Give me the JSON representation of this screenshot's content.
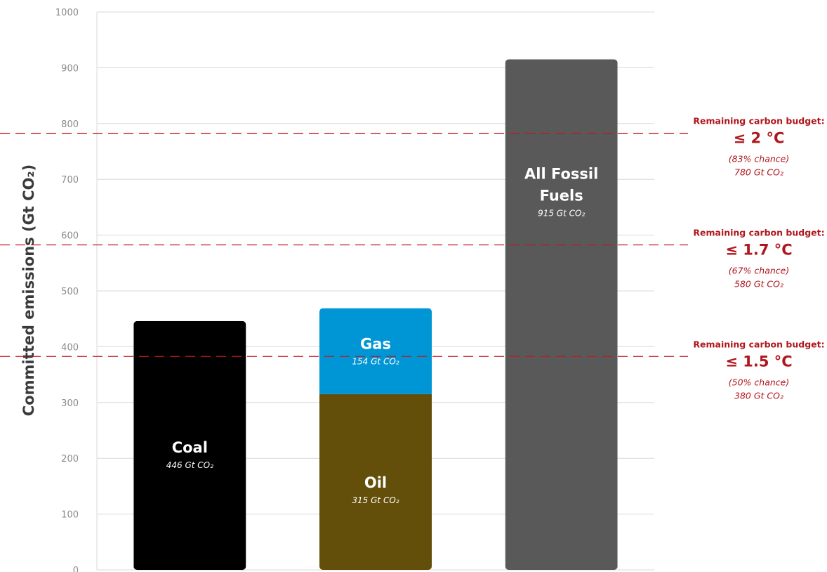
{
  "chart_data": {
    "type": "bar",
    "ylabel": "Committed emissions (Gt CO₂)",
    "ylim": [
      0,
      1000
    ],
    "yticks": [
      "0",
      "100",
      "200",
      "300",
      "400",
      "500",
      "600",
      "700",
      "800",
      "900",
      "1000"
    ],
    "grid": true,
    "bars": [
      {
        "segments": [
          {
            "name": "Coal",
            "value": 446,
            "value_label": "446 Gt CO₂",
            "color": "#000000"
          }
        ]
      },
      {
        "segments": [
          {
            "name": "Oil",
            "value": 315,
            "value_label": "315 Gt CO₂",
            "color": "#634f0a"
          },
          {
            "name": "Gas",
            "value": 154,
            "value_label": "154 Gt CO₂",
            "color": "#0096d6"
          }
        ]
      },
      {
        "segments": [
          {
            "name": "All Fossil Fuels",
            "value": 915,
            "value_label": "915 Gt CO₂",
            "color": "#595959"
          }
        ]
      }
    ],
    "thresholds": [
      {
        "value": 780,
        "title": "Remaining carbon budget:",
        "temp": "≤ 2 °C",
        "chance": "(83% chance)",
        "amount": "780 Gt CO₂"
      },
      {
        "value": 580,
        "title": "Remaining carbon budget:",
        "temp": "≤ 1.7 °C",
        "chance": "(67% chance)",
        "amount": "580 Gt CO₂"
      },
      {
        "value": 380,
        "title": "Remaining carbon budget:",
        "temp": "≤ 1.5 °C",
        "chance": "(50% chance)",
        "amount": "380 Gt CO₂"
      }
    ],
    "colors": {
      "grid": "#d9d9d9",
      "threshold": "#c0191f",
      "annotation": "#b0161c",
      "label": "#3a3a3a"
    }
  }
}
